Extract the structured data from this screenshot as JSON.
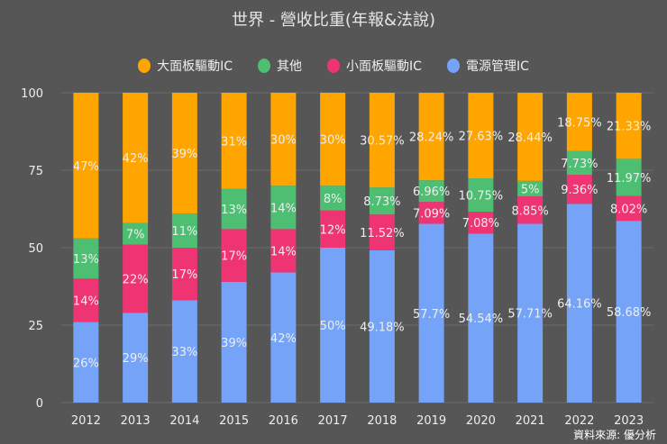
{
  "chart_data": {
    "type": "bar",
    "stacked": true,
    "title": "世界 - 營收比重(年報&法說)",
    "categories": [
      "2012",
      "2013",
      "2014",
      "2015",
      "2016",
      "2017",
      "2018",
      "2019",
      "2020",
      "2021",
      "2022",
      "2023"
    ],
    "ylim": [
      0,
      100
    ],
    "yticks": [
      0,
      25,
      50,
      75,
      100
    ],
    "grid": true,
    "legend": "top",
    "series": [
      {
        "name": "電源管理IC",
        "color": "#74A3F7",
        "values": [
          26,
          29,
          33,
          39,
          42,
          50,
          49.18,
          57.7,
          54.54,
          57.71,
          64.16,
          58.68
        ],
        "labels": [
          "26%",
          "29%",
          "33%",
          "39%",
          "42%",
          "50%",
          "49.18%",
          "57.7%",
          "54.54%",
          "57.71%",
          "64.16%",
          "58.68%"
        ]
      },
      {
        "name": "小面板驅動IC",
        "color": "#EE3472",
        "values": [
          14,
          22,
          17,
          17,
          14,
          12,
          11.52,
          7.09,
          7.08,
          8.85,
          9.36,
          8.02
        ],
        "labels": [
          "14%",
          "22%",
          "17%",
          "17%",
          "14%",
          "12%",
          "11.52%",
          "7.09%",
          "7.08%",
          "8.85%",
          "9.36%",
          "8.02%"
        ]
      },
      {
        "name": "其他",
        "color": "#4DBE72",
        "values": [
          13,
          7,
          11,
          13,
          14,
          8,
          8.73,
          6.96,
          10.75,
          5,
          7.73,
          11.97
        ],
        "labels": [
          "13%",
          "7%",
          "11%",
          "13%",
          "14%",
          "8%",
          "8.73%",
          "6.96%",
          "10.75%",
          "5%",
          "7.73%",
          "11.97%"
        ]
      },
      {
        "name": "大面板驅動IC",
        "color": "#FFA500",
        "values": [
          47,
          42,
          39,
          31,
          30,
          30,
          30.57,
          28.24,
          27.63,
          28.44,
          18.75,
          21.33
        ],
        "labels": [
          "47%",
          "42%",
          "39%",
          "31%",
          "30%",
          "30%",
          "30.57%",
          "28.24%",
          "27.63%",
          "28.44%",
          "18.75%",
          "21.33%"
        ]
      }
    ],
    "legend_order": [
      3,
      2,
      1,
      0
    ]
  },
  "source": "資料來源: 優分析"
}
